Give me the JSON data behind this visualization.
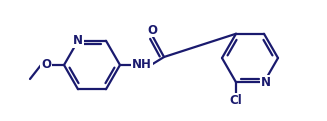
{
  "bg_color": "#ffffff",
  "bond_color": "#1a1a6e",
  "text_color": "#1a1a6e",
  "line_width": 1.6,
  "font_size": 8.5,
  "figsize": [
    3.27,
    1.21
  ],
  "dpi": 100,
  "xlim": [
    0,
    327
  ],
  "ylim": [
    0,
    121
  ]
}
